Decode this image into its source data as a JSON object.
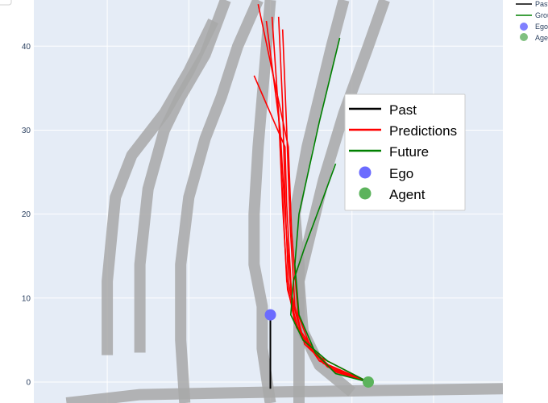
{
  "chart_data": {
    "type": "line",
    "title": "",
    "xlabel": "",
    "ylabel": "",
    "xlim": [
      -29,
      28.5
    ],
    "ylim": [
      -2.5,
      45.5
    ],
    "yticks": [
      0,
      10,
      20,
      30,
      40
    ],
    "ytick_labels": [
      "0",
      "10",
      "20",
      "30",
      "40"
    ],
    "grid": true,
    "colors": {
      "background": "#e5ecf6",
      "lanes": "#a8a8a8",
      "past": "#000000",
      "predictions": "#ff0000",
      "future": "#008000",
      "ego": "#6b6bff",
      "agent": "#5cb35c"
    },
    "lanes": [
      [
        [
          -25,
          -2.5
        ],
        [
          -16,
          -1.5
        ],
        [
          0,
          -1.2
        ],
        [
          14,
          -1.0
        ],
        [
          28.5,
          -0.8
        ]
      ],
      [
        [
          -20,
          3.2
        ],
        [
          -20,
          12
        ],
        [
          -19,
          22
        ],
        [
          -17,
          27
        ],
        [
          -13,
          32
        ],
        [
          -10,
          37
        ],
        [
          -7,
          43
        ]
      ],
      [
        [
          -16,
          3.5
        ],
        [
          -16,
          14
        ],
        [
          -15,
          23
        ],
        [
          -13,
          30
        ],
        [
          -11,
          34
        ],
        [
          -8,
          39
        ],
        [
          -5.5,
          45.5
        ]
      ],
      [
        [
          -10.5,
          -2.5
        ],
        [
          -11,
          5
        ],
        [
          -11,
          14
        ],
        [
          -10,
          22
        ],
        [
          -8,
          29
        ],
        [
          -6,
          34
        ],
        [
          -4,
          40
        ],
        [
          -1.5,
          45.5
        ]
      ],
      [
        [
          0,
          -2.5
        ],
        [
          -1,
          4
        ],
        [
          -1,
          9
        ],
        [
          -2,
          14
        ],
        [
          -2,
          20
        ],
        [
          -1.5,
          28
        ],
        [
          0,
          45.5
        ]
      ],
      [
        [
          3.5,
          -2.5
        ],
        [
          3.5,
          6
        ],
        [
          3.5,
          14
        ],
        [
          3,
          20
        ],
        [
          4.5,
          28
        ],
        [
          6,
          34
        ],
        [
          7.5,
          40
        ],
        [
          9,
          45.5
        ]
      ],
      [
        [
          10,
          -1.2
        ],
        [
          6,
          2
        ],
        [
          4,
          6
        ],
        [
          3.5,
          12
        ],
        [
          5,
          18
        ],
        [
          6.5,
          24
        ],
        [
          9,
          32
        ],
        [
          12,
          40
        ],
        [
          14,
          45.5
        ]
      ]
    ],
    "past": {
      "name": "Past",
      "x": [
        0,
        0
      ],
      "y": [
        8,
        -0.8
      ]
    },
    "predictions": {
      "name": "Predictions",
      "series": [
        {
          "x": [
            12,
            7,
            4,
            2.6,
            1.8,
            1.2,
            -0.5
          ],
          "y": [
            0,
            1.8,
            5,
            10,
            20,
            30,
            43
          ]
        },
        {
          "x": [
            12,
            6.5,
            3.5,
            2.1,
            1.5,
            1,
            0.2
          ],
          "y": [
            0,
            2.2,
            6,
            11,
            21,
            32,
            43.5
          ]
        },
        {
          "x": [
            12,
            6,
            3.2,
            2.2,
            1.8,
            1.5,
            1
          ],
          "y": [
            0,
            2.5,
            6.5,
            12,
            22,
            33,
            43.5
          ]
        },
        {
          "x": [
            12,
            7.5,
            4.2,
            3,
            2.4,
            2,
            1.5
          ],
          "y": [
            0,
            1.5,
            4.5,
            9,
            19,
            30,
            42
          ]
        },
        {
          "x": [
            12,
            6,
            3,
            2,
            1.5,
            1
          ],
          "y": [
            0,
            3,
            7,
            12,
            22,
            32
          ]
        },
        {
          "x": [
            12,
            7,
            3.8,
            2.6,
            2,
            1.8,
            -2
          ],
          "y": [
            0,
            2,
            5.5,
            10.5,
            21,
            28,
            36.5
          ]
        },
        {
          "x": [
            12,
            8,
            5,
            3.4,
            2.6,
            2.2,
            -1.5
          ],
          "y": [
            0,
            1.2,
            4,
            8,
            18,
            28,
            45
          ]
        }
      ]
    },
    "future": {
      "name": "Future",
      "series": [
        {
          "x": [
            12,
            8,
            5.5,
            3.5,
            3,
            3.5,
            6,
            8.5
          ],
          "y": [
            0,
            1,
            3.5,
            8,
            14,
            20,
            31,
            41
          ]
        },
        {
          "x": [
            12,
            7,
            4,
            2.5,
            2.8,
            4.2,
            6.5,
            8
          ],
          "y": [
            0,
            2.5,
            5,
            8,
            12,
            16,
            22,
            26
          ]
        }
      ]
    },
    "ego": {
      "name": "Ego",
      "x": 0,
      "y": 8
    },
    "agent": {
      "name": "Agent",
      "x": 12,
      "y": 0
    },
    "legend": {
      "placement": "center-right",
      "entries": [
        "Past",
        "Predictions",
        "Future",
        "Ego",
        "Agent"
      ]
    },
    "side_legend": {
      "placement": "top-right, outside plot",
      "entries": [
        "Past",
        "Ground",
        "Ego",
        "Agent"
      ]
    }
  }
}
